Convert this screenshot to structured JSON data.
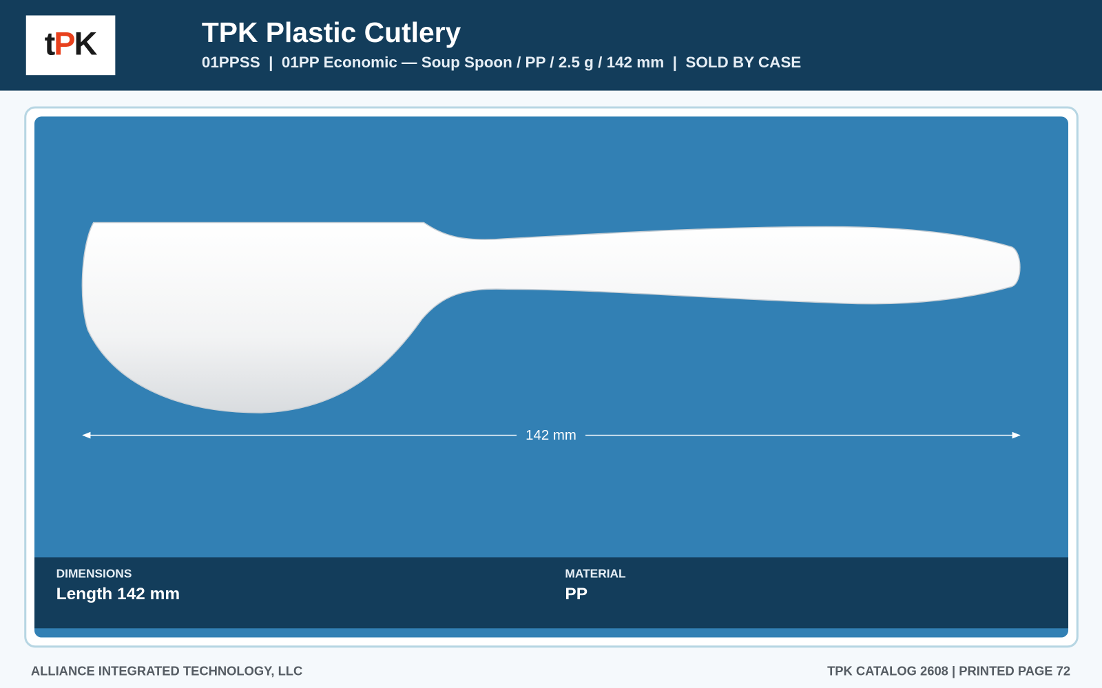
{
  "header": {
    "logo": [
      "t",
      "P",
      "K"
    ],
    "title": "TPK Plastic Cutlery",
    "subtitle": "01PPSS  |  01PP Economic — Soup Spoon / PP / 2.5 g / 142 mm  |  SOLD BY CASE"
  },
  "product": {
    "dimension_label": "142 mm",
    "specs": [
      {
        "label": "DIMENSIONS",
        "value": "Length 142 mm"
      },
      {
        "label": "MATERIAL",
        "value": "PP"
      }
    ]
  },
  "footer": {
    "left": "ALLIANCE INTEGRATED TECHNOLOGY, LLC",
    "right": "TPK CATALOG 2608 | PRINTED PAGE 72"
  }
}
